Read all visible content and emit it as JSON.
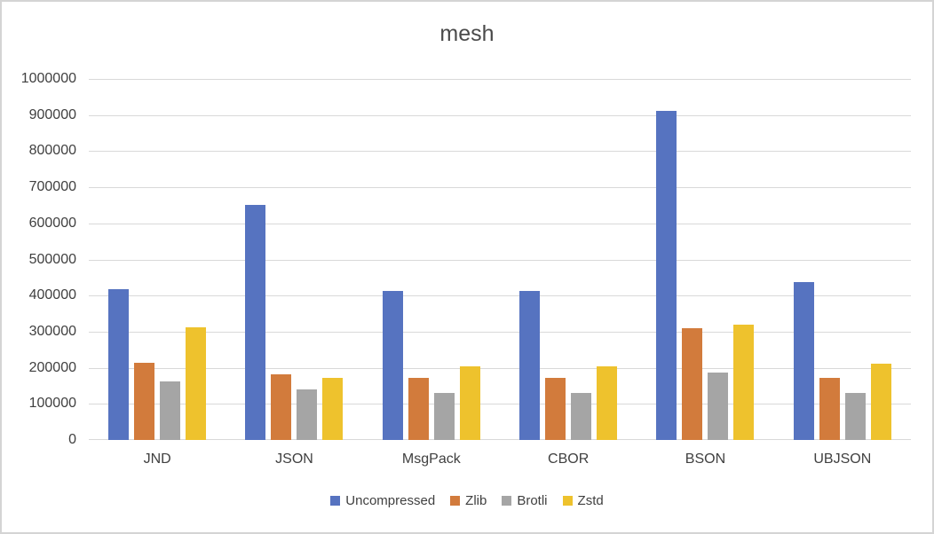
{
  "chart_data": {
    "type": "bar",
    "title": "mesh",
    "categories": [
      "JND",
      "JSON",
      "MsgPack",
      "CBOR",
      "BSON",
      "UBJSON"
    ],
    "series": [
      {
        "name": "Uncompressed",
        "color": "#5673c0",
        "values": [
          418000,
          652000,
          413000,
          413000,
          912000,
          438000
        ]
      },
      {
        "name": "Zlib",
        "color": "#d27b3c",
        "values": [
          214000,
          182000,
          173000,
          173000,
          310000,
          171000
        ]
      },
      {
        "name": "Brotli",
        "color": "#a5a5a5",
        "values": [
          161000,
          141000,
          131000,
          131000,
          187000,
          130000
        ]
      },
      {
        "name": "Zstd",
        "color": "#eec22d",
        "values": [
          311000,
          172000,
          203000,
          203000,
          320000,
          212000
        ]
      }
    ],
    "ylim": [
      0,
      1000000
    ],
    "ytick_labels_top_to_bottom": [
      "1000000",
      "900000",
      "800000",
      "700000",
      "600000",
      "500000",
      "400000",
      "300000",
      "200000",
      "100000",
      "0"
    ],
    "xlabel": "",
    "ylabel": "",
    "grid": true,
    "gridline_color": "#d9d9d9",
    "legend_position": "bottom",
    "text_color": "#404040",
    "title_color": "#4a4a4a",
    "canvas_border_color": "#d4d4d4"
  }
}
